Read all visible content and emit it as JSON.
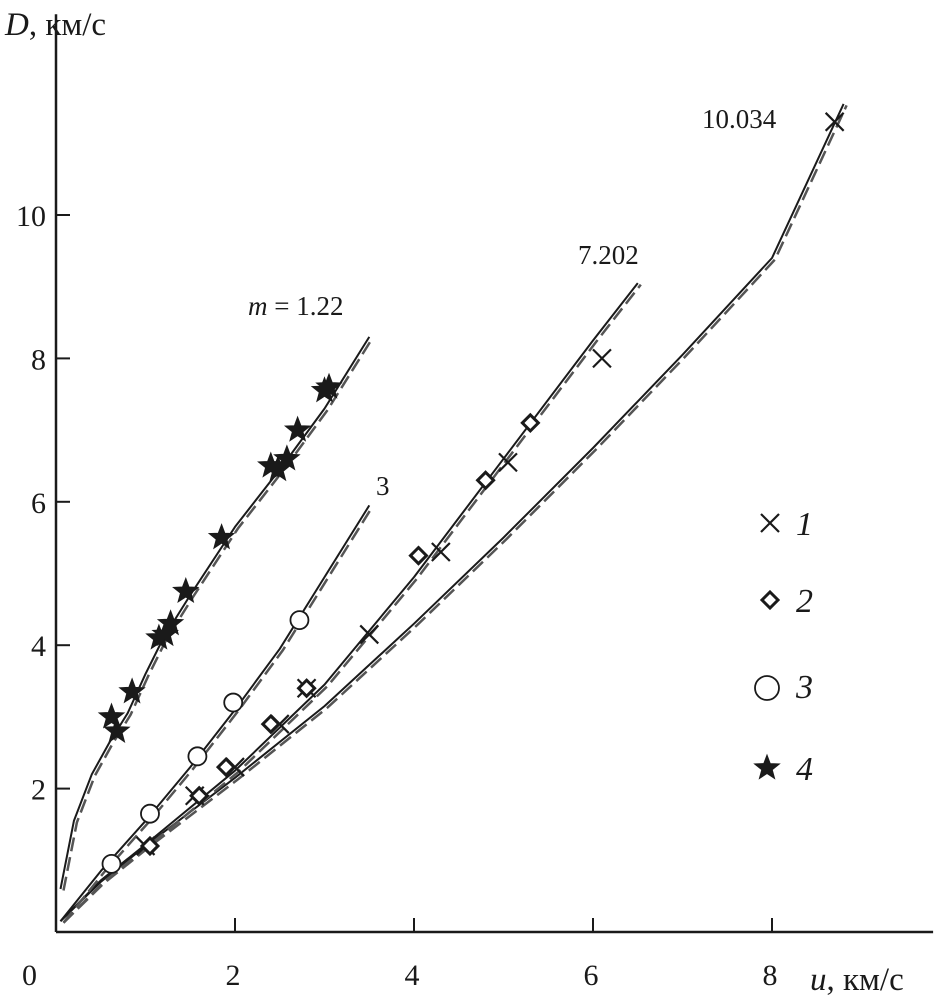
{
  "chart_data": {
    "type": "scatter",
    "xlabel_var": "u",
    "xlabel_unit": ", км/с",
    "ylabel_var": "D",
    "ylabel_unit": ", км/с",
    "origin_label": "0",
    "xlim": [
      0,
      9.8
    ],
    "ylim": [
      0,
      12.8
    ],
    "xticks": [
      2,
      4,
      6,
      8
    ],
    "yticks": [
      2,
      4,
      6,
      8,
      10
    ],
    "grid": false,
    "legend_position": "right",
    "series": [
      {
        "label": "1",
        "marker": "cross",
        "x": [
          1.0,
          1.55,
          2.0,
          2.5,
          2.8,
          3.5,
          4.3,
          5.05,
          6.1,
          8.7
        ],
        "y": [
          1.2,
          1.9,
          2.3,
          2.9,
          3.4,
          4.15,
          5.3,
          6.55,
          8.0,
          11.3
        ]
      },
      {
        "label": "2",
        "marker": "diamond",
        "x": [
          1.05,
          1.6,
          1.9,
          2.4,
          2.8,
          4.05,
          4.8,
          5.3
        ],
        "y": [
          1.2,
          1.9,
          2.3,
          2.9,
          3.4,
          5.25,
          6.3,
          7.1
        ]
      },
      {
        "label": "3",
        "marker": "circle",
        "x": [
          0.62,
          1.05,
          1.58,
          1.98,
          2.72
        ],
        "y": [
          0.95,
          1.65,
          2.45,
          3.2,
          4.35
        ]
      },
      {
        "label": "4",
        "marker": "star",
        "x": [
          0.62,
          0.68,
          0.85,
          1.15,
          1.28,
          1.22,
          1.45,
          1.85,
          2.4,
          2.48,
          2.58,
          2.7,
          3.0,
          3.05
        ],
        "y": [
          3.0,
          2.8,
          3.35,
          4.1,
          4.3,
          4.15,
          4.75,
          5.5,
          6.5,
          6.45,
          6.6,
          7.0,
          7.55,
          7.6
        ]
      }
    ],
    "curves": [
      {
        "label": "10.034",
        "x": [
          0.05,
          0.5,
          1,
          2,
          3,
          4,
          5,
          6,
          7,
          8,
          8.8
        ],
        "y": [
          0.15,
          0.7,
          1.2,
          2.15,
          3.15,
          4.3,
          5.5,
          6.75,
          8.05,
          9.4,
          11.55
        ]
      },
      {
        "label": "7.202",
        "x": [
          0.05,
          0.5,
          1,
          2,
          3,
          4,
          5,
          6,
          6.5
        ],
        "y": [
          0.15,
          0.72,
          1.22,
          2.25,
          3.45,
          4.95,
          6.6,
          8.25,
          9.05
        ]
      },
      {
        "label": "3",
        "x": [
          0.05,
          0.5,
          1,
          1.5,
          2,
          2.5,
          3,
          3.5
        ],
        "y": [
          0.15,
          0.85,
          1.55,
          2.3,
          3.1,
          3.95,
          4.95,
          5.95
        ]
      },
      {
        "label": "m = 1.22",
        "x": [
          0.05,
          0.2,
          0.4,
          0.6,
          0.8,
          1.0,
          1.2,
          1.5,
          2.0,
          2.5,
          3.0,
          3.5
        ],
        "y": [
          0.6,
          1.55,
          2.2,
          2.65,
          3.05,
          3.6,
          4.1,
          4.7,
          5.65,
          6.45,
          7.3,
          8.3
        ]
      }
    ]
  }
}
